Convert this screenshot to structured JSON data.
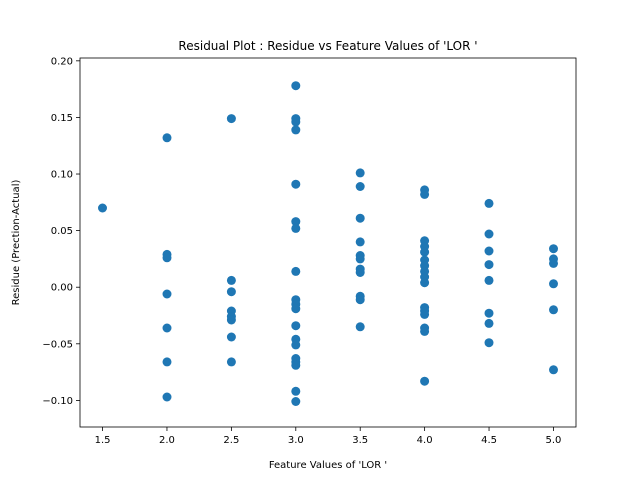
{
  "chart_data": {
    "type": "scatter",
    "title": "Residual Plot : Residue vs Feature Values of 'LOR '",
    "xlabel": "Feature Values of 'LOR '",
    "ylabel": "Residue (Prection-Actual)",
    "xlim": [
      1.325,
      5.175
    ],
    "ylim": [
      -0.1235,
      0.2025
    ],
    "xticks": [
      "1.5",
      "2.0",
      "2.5",
      "3.0",
      "3.5",
      "4.0",
      "4.5",
      "5.0"
    ],
    "xtick_values": [
      1.5,
      2.0,
      2.5,
      3.0,
      3.5,
      4.0,
      4.5,
      5.0
    ],
    "yticks": [
      "−0.10",
      "−0.05",
      "0.00",
      "0.05",
      "0.10",
      "0.15",
      "0.20"
    ],
    "ytick_values": [
      -0.1,
      -0.05,
      0.0,
      0.05,
      0.1,
      0.15,
      0.2
    ],
    "grid": false,
    "legend": "none",
    "marker_color": "#1f77b4",
    "points": [
      [
        1.5,
        0.07
      ],
      [
        2.0,
        0.132
      ],
      [
        2.0,
        0.029
      ],
      [
        2.0,
        0.026
      ],
      [
        2.0,
        -0.006
      ],
      [
        2.0,
        -0.036
      ],
      [
        2.0,
        -0.066
      ],
      [
        2.0,
        -0.097
      ],
      [
        2.5,
        0.149
      ],
      [
        2.5,
        0.006
      ],
      [
        2.5,
        -0.004
      ],
      [
        2.5,
        -0.021
      ],
      [
        2.5,
        -0.026
      ],
      [
        2.5,
        -0.029
      ],
      [
        2.5,
        -0.044
      ],
      [
        2.5,
        -0.066
      ],
      [
        3.0,
        0.178
      ],
      [
        3.0,
        0.149
      ],
      [
        3.0,
        0.146
      ],
      [
        3.0,
        0.139
      ],
      [
        3.0,
        0.091
      ],
      [
        3.0,
        0.058
      ],
      [
        3.0,
        0.052
      ],
      [
        3.0,
        0.014
      ],
      [
        3.0,
        -0.011
      ],
      [
        3.0,
        -0.015
      ],
      [
        3.0,
        -0.019
      ],
      [
        3.0,
        -0.034
      ],
      [
        3.0,
        -0.046
      ],
      [
        3.0,
        -0.051
      ],
      [
        3.0,
        -0.063
      ],
      [
        3.0,
        -0.066
      ],
      [
        3.0,
        -0.069
      ],
      [
        3.0,
        -0.092
      ],
      [
        3.0,
        -0.101
      ],
      [
        3.5,
        0.101
      ],
      [
        3.5,
        0.089
      ],
      [
        3.5,
        0.061
      ],
      [
        3.5,
        0.04
      ],
      [
        3.5,
        0.028
      ],
      [
        3.5,
        0.025
      ],
      [
        3.5,
        0.016
      ],
      [
        3.5,
        0.013
      ],
      [
        3.5,
        -0.008
      ],
      [
        3.5,
        -0.011
      ],
      [
        3.5,
        -0.035
      ],
      [
        4.0,
        0.086
      ],
      [
        4.0,
        0.082
      ],
      [
        4.0,
        0.041
      ],
      [
        4.0,
        0.036
      ],
      [
        4.0,
        0.031
      ],
      [
        4.0,
        0.024
      ],
      [
        4.0,
        0.019
      ],
      [
        4.0,
        0.014
      ],
      [
        4.0,
        0.009
      ],
      [
        4.0,
        0.004
      ],
      [
        4.0,
        -0.018
      ],
      [
        4.0,
        -0.021
      ],
      [
        4.0,
        -0.024
      ],
      [
        4.0,
        -0.036
      ],
      [
        4.0,
        -0.039
      ],
      [
        4.0,
        -0.083
      ],
      [
        4.5,
        0.074
      ],
      [
        4.5,
        0.047
      ],
      [
        4.5,
        0.032
      ],
      [
        4.5,
        0.02
      ],
      [
        4.5,
        0.006
      ],
      [
        4.5,
        -0.023
      ],
      [
        4.5,
        -0.032
      ],
      [
        4.5,
        -0.049
      ],
      [
        5.0,
        0.034
      ],
      [
        5.0,
        0.025
      ],
      [
        5.0,
        0.021
      ],
      [
        5.0,
        0.003
      ],
      [
        5.0,
        -0.02
      ],
      [
        5.0,
        -0.073
      ]
    ]
  }
}
